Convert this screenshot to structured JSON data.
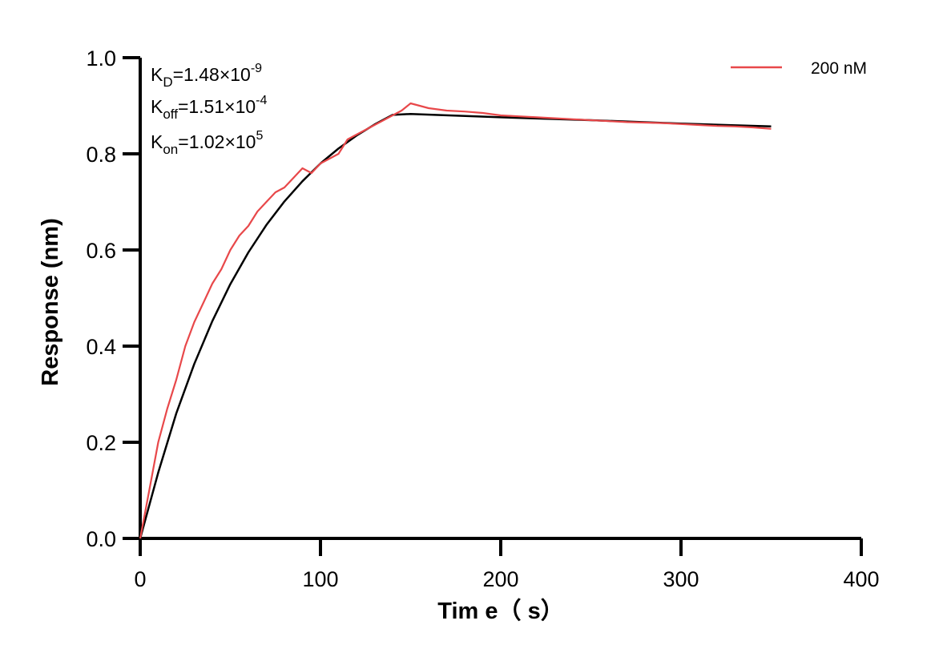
{
  "colors": {
    "measured": "#e8484a",
    "fit": "#000000",
    "axis": "#000000"
  },
  "chart_data": {
    "type": "line",
    "xlabel": "Tim e（ s）",
    "ylabel": "Response (nm)",
    "xlim": [
      0,
      400
    ],
    "ylim": [
      0,
      1.0
    ],
    "x_ticks": [
      "0",
      "100",
      "200",
      "300",
      "400"
    ],
    "y_ticks": [
      "0.0",
      "0.2",
      "0.4",
      "0.6",
      "0.8",
      "1.0"
    ],
    "grid": false,
    "legend_position": "top-right",
    "annotations": [
      {
        "main": "K",
        "sub": "D",
        "value": "=1.48×10",
        "exp": "-9"
      },
      {
        "main": "K",
        "sub": "off",
        "value": "=1.51×10",
        "exp": "-4"
      },
      {
        "main": "K",
        "sub": "on",
        "value": "=1.02×10",
        "exp": "5"
      }
    ],
    "series": [
      {
        "name": "200 nM",
        "role": "measured",
        "x": [
          0,
          5,
          10,
          15,
          20,
          25,
          30,
          35,
          40,
          45,
          50,
          55,
          60,
          65,
          70,
          75,
          80,
          85,
          90,
          95,
          100,
          105,
          110,
          115,
          120,
          125,
          130,
          135,
          140,
          145,
          150,
          155,
          160,
          170,
          180,
          190,
          200,
          210,
          220,
          230,
          240,
          250,
          260,
          270,
          280,
          290,
          300,
          310,
          320,
          330,
          340,
          350
        ],
        "y": [
          0.0,
          0.1,
          0.2,
          0.27,
          0.33,
          0.4,
          0.45,
          0.49,
          0.53,
          0.56,
          0.6,
          0.63,
          0.65,
          0.68,
          0.7,
          0.72,
          0.73,
          0.75,
          0.77,
          0.76,
          0.78,
          0.79,
          0.8,
          0.83,
          0.84,
          0.85,
          0.86,
          0.87,
          0.88,
          0.89,
          0.905,
          0.9,
          0.895,
          0.89,
          0.888,
          0.885,
          0.88,
          0.878,
          0.876,
          0.874,
          0.872,
          0.87,
          0.868,
          0.866,
          0.865,
          0.864,
          0.862,
          0.86,
          0.858,
          0.857,
          0.855,
          0.852
        ]
      },
      {
        "name": "",
        "role": "fit",
        "x": [
          0,
          10,
          20,
          30,
          40,
          50,
          60,
          70,
          80,
          90,
          100,
          110,
          120,
          130,
          140,
          150,
          200,
          250,
          300,
          350
        ],
        "y": [
          0.0,
          0.137,
          0.26,
          0.363,
          0.452,
          0.529,
          0.595,
          0.652,
          0.701,
          0.743,
          0.78,
          0.811,
          0.838,
          0.861,
          0.881,
          0.883,
          0.876,
          0.87,
          0.863,
          0.857
        ]
      }
    ]
  }
}
